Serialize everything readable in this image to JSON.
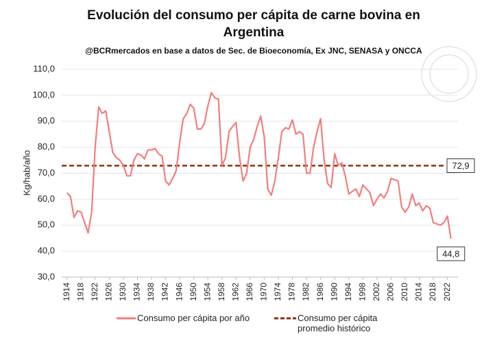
{
  "chart_data": {
    "type": "line",
    "title": "Evolución del consumo per cápita de carne bovina en Argentina",
    "subtitle": "@BCRmercados en base a datos de Sec. de Bioeconomía,  Ex JNC, SENASA y ONCCA",
    "y_label": "Kg/hab/año",
    "x": [
      1914,
      1915,
      1916,
      1917,
      1918,
      1919,
      1920,
      1921,
      1922,
      1923,
      1924,
      1925,
      1926,
      1927,
      1928,
      1929,
      1930,
      1931,
      1932,
      1933,
      1934,
      1935,
      1936,
      1937,
      1938,
      1939,
      1940,
      1941,
      1942,
      1943,
      1944,
      1945,
      1946,
      1947,
      1948,
      1949,
      1950,
      1951,
      1952,
      1953,
      1954,
      1955,
      1956,
      1957,
      1958,
      1959,
      1960,
      1961,
      1962,
      1963,
      1964,
      1965,
      1966,
      1967,
      1968,
      1969,
      1970,
      1971,
      1972,
      1973,
      1974,
      1975,
      1976,
      1977,
      1978,
      1979,
      1980,
      1981,
      1982,
      1983,
      1984,
      1985,
      1986,
      1987,
      1988,
      1989,
      1990,
      1991,
      1992,
      1993,
      1994,
      1995,
      1996,
      1997,
      1998,
      1999,
      2000,
      2001,
      2002,
      2003,
      2004,
      2005,
      2006,
      2007,
      2008,
      2009,
      2010,
      2011,
      2012,
      2013,
      2014,
      2015,
      2016,
      2017,
      2018,
      2019,
      2020,
      2021,
      2022,
      2023
    ],
    "series": [
      {
        "name": "Consumo per cápita por año",
        "color": "#f47c7c",
        "values": [
          62.5,
          61,
          53,
          55.5,
          55,
          51,
          47,
          55,
          80,
          95.5,
          93,
          94,
          86,
          78,
          76,
          75,
          73,
          69,
          69,
          75,
          77.5,
          77,
          75.5,
          79,
          79,
          79.5,
          77.5,
          76.5,
          67,
          65.5,
          68,
          71,
          82,
          91,
          93,
          96.5,
          95,
          87,
          87,
          89,
          96,
          101,
          99,
          98.5,
          73,
          76,
          86,
          88,
          89.5,
          76,
          67,
          70,
          80,
          83,
          88,
          92,
          84,
          64,
          61.5,
          67,
          76,
          86,
          87.5,
          87,
          90.5,
          85,
          86,
          85,
          70,
          70,
          80,
          86,
          91,
          75,
          66,
          64.5,
          77.5,
          73,
          74,
          69,
          62,
          63,
          64,
          61,
          65.5,
          64,
          62.5,
          57.5,
          60,
          62,
          60.5,
          63,
          68,
          67.5,
          67,
          57,
          55,
          57,
          62,
          57.5,
          58.5,
          55.5,
          57.5,
          56.5,
          51,
          50.5,
          50,
          51,
          53.5,
          44.8
        ]
      }
    ],
    "reference_line": {
      "name": "Consumo per cápita promedio histórico",
      "value": 72.9,
      "value_label": "72,9",
      "color": "#8b2e10"
    },
    "annotations": [
      {
        "x": 2023,
        "value": 44.8,
        "label": "44,8"
      }
    ],
    "xlim": [
      1912.5,
      2025
    ],
    "xticks": [
      1914,
      1918,
      1922,
      1926,
      1930,
      1934,
      1938,
      1942,
      1946,
      1950,
      1954,
      1958,
      1962,
      1966,
      1970,
      1974,
      1978,
      1982,
      1986,
      1990,
      1994,
      1998,
      2002,
      2006,
      2010,
      2014,
      2018,
      2022
    ],
    "ylim": [
      30,
      110
    ],
    "yticks": [
      {
        "value": 30,
        "label": "30,0"
      },
      {
        "value": 40,
        "label": "40,0"
      },
      {
        "value": 50,
        "label": "50,0"
      },
      {
        "value": 60,
        "label": "60,0"
      },
      {
        "value": 70,
        "label": "70,0"
      },
      {
        "value": 80,
        "label": "80,0"
      },
      {
        "value": 90,
        "label": "90,0"
      },
      {
        "value": 100,
        "label": "100,0"
      },
      {
        "value": 110,
        "label": "110,0"
      }
    ],
    "grid": true
  }
}
